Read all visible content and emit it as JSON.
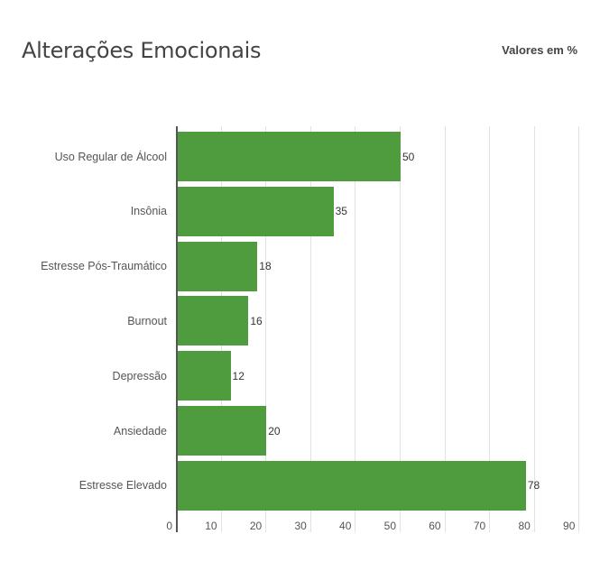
{
  "header": {
    "title": "Alterações Emocionais",
    "subtitle": "Valores em %"
  },
  "colors": {
    "bar": "#4e9c3d",
    "text": "#444444",
    "grid": "#e2e2e2"
  },
  "chart_data": {
    "type": "bar",
    "orientation": "horizontal",
    "title": "Alterações Emocionais",
    "subtitle": "Valores em %",
    "categories": [
      "Uso Regular de Álcool",
      "Insônia",
      "Estresse Pós-Traumático",
      "Burnout",
      "Depressão",
      "Ansiedade",
      "Estresse Elevado"
    ],
    "values": [
      50,
      35,
      18,
      16,
      12,
      20,
      78
    ],
    "xlabel": "",
    "ylabel": "",
    "xlim": [
      0,
      90
    ],
    "xticks": [
      "0",
      "10",
      "20",
      "30",
      "40",
      "50",
      "60",
      "70",
      "80",
      "90"
    ],
    "grid": true,
    "legend": null
  }
}
